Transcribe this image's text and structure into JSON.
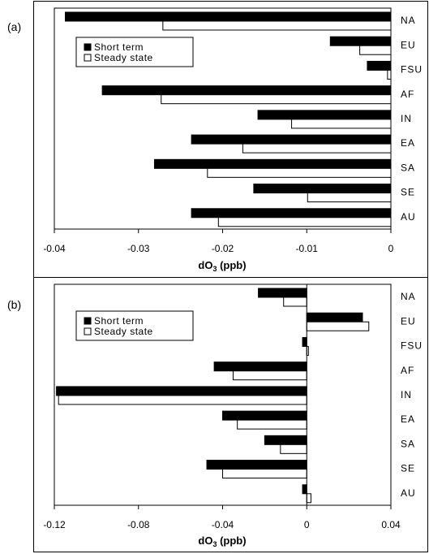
{
  "chart_data": [
    {
      "type": "bar",
      "orientation": "horizontal",
      "panel_label": "(a)",
      "categories": [
        "NA",
        "EU",
        "FSU",
        "AF",
        "IN",
        "EA",
        "SA",
        "SE",
        "AU"
      ],
      "series": [
        {
          "name": "Short term",
          "values": [
            -0.0387,
            -0.0072,
            -0.0028,
            -0.0343,
            -0.0158,
            -0.0237,
            -0.0281,
            -0.0163,
            -0.0237
          ],
          "color": "#000000"
        },
        {
          "name": "Steady state",
          "values": [
            -0.0271,
            -0.0037,
            -0.0004,
            -0.0273,
            -0.0118,
            -0.0176,
            -0.0218,
            -0.0099,
            -0.0205
          ],
          "color": "#ffffff"
        }
      ],
      "xlim": [
        -0.04,
        0
      ],
      "xticks": [
        "-0.04",
        "-0.03",
        "-0.02",
        "-0.01",
        "0"
      ],
      "xlabel": "dO",
      "xlabel_sub": "3",
      "xlabel_unit": " (ppb)",
      "legend_position": "top-left",
      "grid": false
    },
    {
      "type": "bar",
      "orientation": "horizontal",
      "panel_label": "(b)",
      "categories": [
        "NA",
        "EU",
        "FSU",
        "AF",
        "IN",
        "EA",
        "SA",
        "SE",
        "AU"
      ],
      "series": [
        {
          "name": "Short term",
          "values": [
            -0.023,
            0.0265,
            -0.002,
            -0.044,
            -0.119,
            -0.04,
            -0.02,
            -0.0475,
            -0.002
          ],
          "color": "#000000"
        },
        {
          "name": "Steady state",
          "values": [
            -0.011,
            0.0295,
            0.0008,
            -0.035,
            -0.118,
            -0.033,
            -0.0125,
            -0.04,
            0.002
          ],
          "color": "#ffffff"
        }
      ],
      "xlim": [
        -0.12,
        0.04
      ],
      "xticks": [
        "-0.12",
        "-0.08",
        "-0.04",
        "0",
        "0.04"
      ],
      "xlabel": "dO",
      "xlabel_sub": "3",
      "xlabel_unit": " (ppb)",
      "legend_position": "top-left",
      "grid": false
    }
  ]
}
